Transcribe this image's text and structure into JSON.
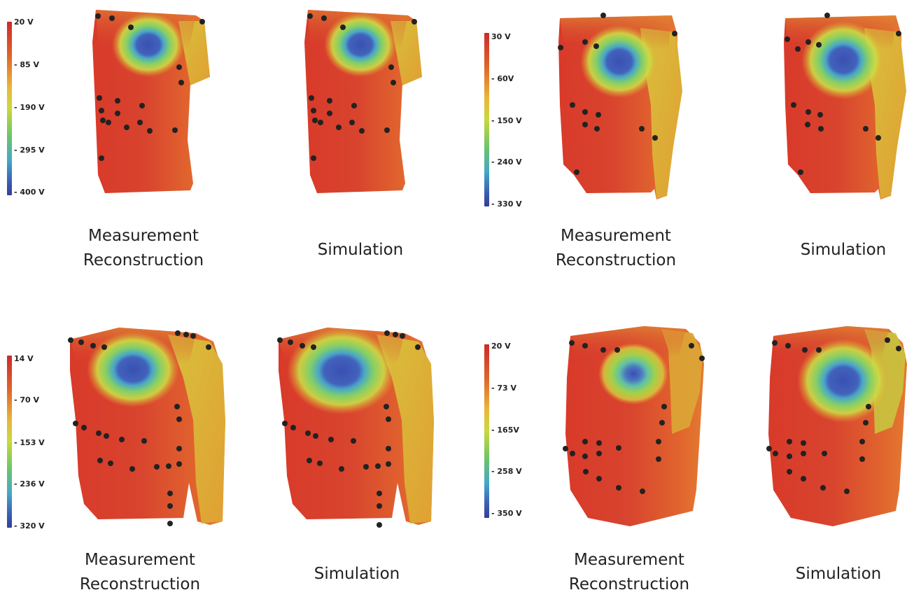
{
  "groups": [
    {
      "colorbar_labels": [
        "20 V",
        "- 85 V",
        "- 190 V",
        "- 295 V",
        "- 400 V"
      ],
      "captions": [
        {
          "line1": "Measurement",
          "line2": "Reconstruction"
        },
        {
          "line1": "Simulation",
          "line2": ""
        }
      ]
    },
    {
      "colorbar_labels": [
        "30 V",
        "- 60V",
        "- 150 V",
        "- 240 V",
        "- 330 V"
      ],
      "captions": [
        {
          "line1": "Measurement",
          "line2": "Reconstruction"
        },
        {
          "line1": "Simulation",
          "line2": ""
        }
      ]
    },
    {
      "colorbar_labels": [
        "14 V",
        "- 70 V",
        "- 153 V",
        "- 236 V",
        "- 320 V"
      ],
      "captions": [
        {
          "line1": "Measurement",
          "line2": "Reconstruction"
        },
        {
          "line1": "Simulation",
          "line2": ""
        }
      ]
    },
    {
      "colorbar_labels": [
        "20 V",
        "- 73 V",
        "- 165V",
        "- 258 V",
        "- 350 V"
      ],
      "captions": [
        {
          "line1": "Measurement",
          "line2": "Reconstruction"
        },
        {
          "line1": "Simulation",
          "line2": ""
        }
      ]
    }
  ],
  "colors": {
    "torso_red": "#d8402c",
    "torso_orange": "#e26a30",
    "shoulder_yellow": "#d9b038",
    "green_ring": "#9fd24a",
    "blue_minimum": "#3c55b0",
    "electrode": "#222222"
  }
}
